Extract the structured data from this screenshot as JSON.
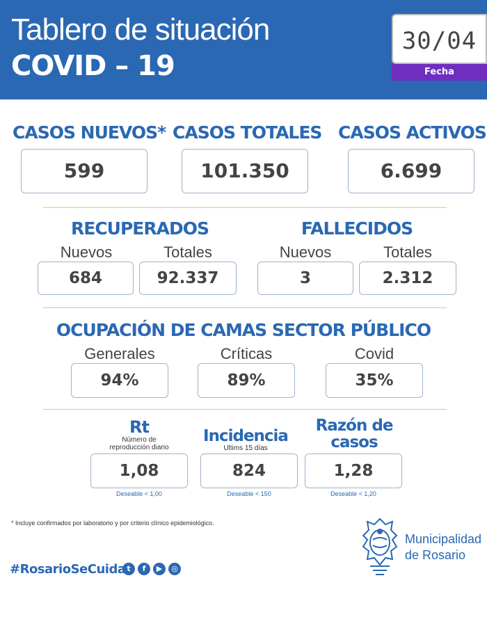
{
  "header": {
    "title_line1": "Tablero de situación",
    "title_line2": "COVID – 19",
    "date": "30/04",
    "date_label": "Fecha"
  },
  "top_stats": [
    {
      "label": "CASOS NUEVOS*",
      "value": "599"
    },
    {
      "label": "CASOS TOTALES",
      "value": "101.350"
    },
    {
      "label": "CASOS ACTIVOS",
      "value": "6.699"
    }
  ],
  "recuperados": {
    "title": "RECUPERADOS",
    "nuevos_label": "Nuevos",
    "nuevos_value": "684",
    "totales_label": "Totales",
    "totales_value": "92.337"
  },
  "fallecidos": {
    "title": "FALLECIDOS",
    "nuevos_label": "Nuevos",
    "nuevos_value": "3",
    "totales_label": "Totales",
    "totales_value": "2.312"
  },
  "camas": {
    "title": "OCUPACIÓN DE CAMAS SECTOR PÚBLICO",
    "items": [
      {
        "label": "Generales",
        "value": "94%"
      },
      {
        "label": "Críticas",
        "value": "89%"
      },
      {
        "label": "Covid",
        "value": "35%"
      }
    ]
  },
  "indicators": [
    {
      "title": "Rt",
      "subtitle_line1": "Número de",
      "subtitle_line2": "reproducción diario",
      "value": "1,08",
      "target": "Deseable < 1,00"
    },
    {
      "title": "Incidencia",
      "subtitle_line1": "Ultims 15 días",
      "value": "824",
      "target": "Deseable < 150"
    },
    {
      "title_line1": "Razón de",
      "title_line2": "casos",
      "value": "1,28",
      "target": "Deseable < 1,20"
    }
  ],
  "footnote": "* Incluye confirmados por laboratorio y por criterio clínico epidemiológico.",
  "hashtag": "#RosarioSeCuida",
  "social_icons": [
    "twitter-icon",
    "facebook-icon",
    "youtube-icon",
    "instagram-icon"
  ],
  "municipality": {
    "line1": "Municipalidad",
    "line2": "de Rosario"
  },
  "colors": {
    "brand_blue": "#2a68b3",
    "accent_purple": "#6f2ec0"
  }
}
